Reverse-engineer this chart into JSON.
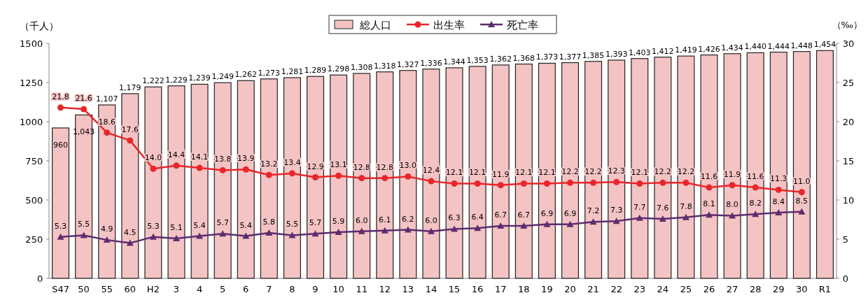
{
  "chart_data": {
    "type": "bar",
    "ylabel": "（千人）",
    "y2label": "（‰）",
    "categories": [
      "S47",
      "50",
      "55",
      "60",
      "H2",
      "3",
      "4",
      "5",
      "6",
      "7",
      "8",
      "9",
      "10",
      "11",
      "12",
      "13",
      "14",
      "15",
      "16",
      "17",
      "18",
      "19",
      "20",
      "21",
      "22",
      "23",
      "24",
      "25",
      "26",
      "27",
      "28",
      "29",
      "30",
      "R1"
    ],
    "series": [
      {
        "name": "総人口",
        "color": "#f4c3c4",
        "values": [
          960,
          1043,
          1107,
          1179,
          1222,
          1229,
          1239,
          1249,
          1262,
          1273,
          1281,
          1289,
          1298,
          1308,
          1318,
          1327,
          1336,
          1344,
          1353,
          1362,
          1368,
          1373,
          1377,
          1385,
          1393,
          1403,
          1412,
          1419,
          1426,
          1434,
          1440,
          1444,
          1448,
          1454
        ],
        "value_labels": [
          "960",
          "1,043",
          "1,107",
          "1,179",
          "1,222",
          "1,229",
          "1,239",
          "1,249",
          "1,262",
          "1,273",
          "1,281",
          "1,289",
          "1,298",
          "1,308",
          "1,318",
          "1,327",
          "1,336",
          "1,344",
          "1,353",
          "1,362",
          "1,368",
          "1,373",
          "1,377",
          "1,385",
          "1,393",
          "1,403",
          "1,412",
          "1,419",
          "1,426",
          "1,434",
          "1,440",
          "1,444",
          "1,448",
          "1,454"
        ]
      },
      {
        "name": "出生率",
        "type": "line",
        "axis": "y2",
        "marker": "circle",
        "color": "#e8262a",
        "values": [
          21.8,
          21.6,
          18.6,
          17.6,
          14.0,
          14.4,
          14.1,
          13.8,
          13.9,
          13.2,
          13.4,
          12.9,
          13.1,
          12.8,
          12.8,
          13.0,
          12.4,
          12.1,
          12.1,
          11.9,
          12.1,
          12.1,
          12.2,
          12.2,
          12.3,
          12.1,
          12.2,
          12.2,
          11.6,
          11.9,
          11.6,
          11.3,
          11.0,
          null
        ],
        "value_labels": [
          "21.8",
          "21.6",
          "18.6",
          "17.6",
          "14.0",
          "14.4",
          "14.1",
          "13.8",
          "13.9",
          "13.2",
          "13.4",
          "12.9",
          "13.1",
          "12.8",
          "12.8",
          "13.0",
          "12.4",
          "12.1",
          "12.1",
          "11.9",
          "12.1",
          "12.1",
          "12.2",
          "12.2",
          "12.3",
          "12.1",
          "12.2",
          "12.2",
          "11.6",
          "11.9",
          "11.6",
          "11.3",
          "11.0",
          null
        ]
      },
      {
        "name": "死亡率",
        "type": "line",
        "axis": "y2",
        "marker": "triangle",
        "color": "#5c2d6e",
        "values": [
          5.3,
          5.5,
          4.9,
          4.5,
          5.3,
          5.1,
          5.4,
          5.7,
          5.4,
          5.8,
          5.5,
          5.7,
          5.9,
          6.0,
          6.1,
          6.2,
          6.0,
          6.3,
          6.4,
          6.7,
          6.7,
          6.9,
          6.9,
          7.2,
          7.3,
          7.7,
          7.6,
          7.8,
          8.1,
          8.0,
          8.2,
          8.4,
          8.5,
          null
        ],
        "value_labels": [
          "5.3",
          "5.5",
          "4.9",
          "4.5",
          "5.3",
          "5.1",
          "5.4",
          "5.7",
          "5.4",
          "5.8",
          "5.5",
          "5.7",
          "5.9",
          "6.0",
          "6.1",
          "6.2",
          "6.0",
          "6.3",
          "6.4",
          "6.7",
          "6.7",
          "6.9",
          "6.9",
          "7.2",
          "7.3",
          "7.7",
          "7.6",
          "7.8",
          "8.1",
          "8.0",
          "8.2",
          "8.4",
          "8.5",
          null
        ]
      }
    ],
    "ylim": [
      0,
      1500
    ],
    "yticks": [
      0,
      250,
      500,
      750,
      1000,
      1250,
      1500
    ],
    "y2lim": [
      0,
      30
    ],
    "y2ticks": [
      0,
      5,
      10,
      15,
      20,
      25,
      30
    ],
    "legend": "top",
    "grid": false
  }
}
